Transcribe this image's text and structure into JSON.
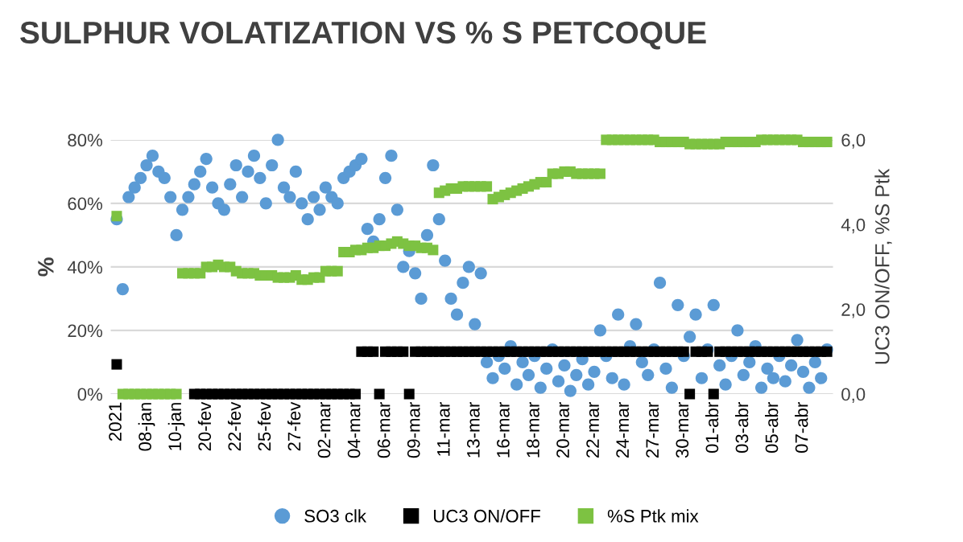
{
  "chart_data": {
    "type": "scatter",
    "title": "SULPHUR VOLATIZATION VS % S PETCOQUE",
    "ylabel": "%",
    "y2label": "UC3 ON/OFF, %S Ptk",
    "categories": [
      "2021",
      null,
      null,
      null,
      null,
      "08-jan",
      null,
      null,
      null,
      null,
      "10-jan",
      null,
      null,
      null,
      null,
      "20-fev",
      null,
      null,
      null,
      null,
      "22-fev",
      null,
      null,
      null,
      null,
      "25-fev",
      null,
      null,
      null,
      null,
      "27-fev",
      null,
      null,
      null,
      null,
      "02-mar",
      null,
      null,
      null,
      null,
      "04-mar",
      null,
      null,
      null,
      null,
      "06-mar",
      null,
      null,
      null,
      null,
      "09-mar",
      null,
      null,
      null,
      null,
      "11-mar",
      null,
      null,
      null,
      null,
      "13-mar",
      null,
      null,
      null,
      null,
      "16-mar",
      null,
      null,
      null,
      null,
      "18-mar",
      null,
      null,
      null,
      null,
      "20-mar",
      null,
      null,
      null,
      null,
      "22-mar",
      null,
      null,
      null,
      null,
      "24-mar",
      null,
      null,
      null,
      null,
      "27-mar",
      null,
      null,
      null,
      null,
      "30-mar",
      null,
      null,
      null,
      null,
      "01-abr",
      null,
      null,
      null,
      null,
      "03-abr",
      null,
      null,
      null,
      null,
      "05-abr",
      null,
      null,
      null,
      null,
      "07-abr",
      null,
      null,
      null,
      null
    ],
    "series": [
      {
        "name": "SO3 clk",
        "color": "#5b9bd5",
        "marker": "circle",
        "values": [
          55,
          33,
          62,
          65,
          68,
          72,
          75,
          70,
          68,
          62,
          50,
          58,
          62,
          66,
          70,
          74,
          65,
          60,
          58,
          66,
          72,
          62,
          70,
          75,
          68,
          60,
          72,
          80,
          65,
          62,
          70,
          60,
          55,
          62,
          58,
          65,
          62,
          60,
          68,
          70,
          72,
          74,
          52,
          48,
          55,
          68,
          75,
          58,
          40,
          45,
          38,
          30,
          50,
          72,
          55,
          42,
          30,
          25,
          35,
          40,
          22,
          38,
          10,
          5,
          12,
          8,
          15,
          3,
          10,
          6,
          12,
          2,
          8,
          14,
          4,
          9,
          1,
          6,
          11,
          3,
          7,
          20,
          12,
          5,
          25,
          3,
          15,
          22,
          10,
          6,
          14,
          35,
          8,
          2,
          28,
          12,
          18,
          25,
          5,
          14,
          28,
          9,
          3,
          12,
          20,
          6,
          10,
          15,
          2,
          8,
          5,
          12,
          4,
          9,
          17,
          7,
          2,
          10,
          5,
          14
        ]
      },
      {
        "name": "UC3 ON/OFF",
        "color": "#000000",
        "marker": "square",
        "axis": "y2",
        "values": [
          0.7,
          null,
          null,
          null,
          null,
          null,
          null,
          null,
          null,
          null,
          null,
          null,
          null,
          0,
          0,
          0,
          0,
          0,
          0,
          0,
          0,
          0,
          0,
          0,
          0,
          0,
          0,
          0,
          0,
          0,
          0,
          0,
          0,
          0,
          0,
          0,
          0,
          0,
          0,
          0,
          0,
          1,
          1,
          1,
          0,
          1,
          1,
          1,
          1,
          0,
          1,
          1,
          1,
          1,
          1,
          1,
          1,
          1,
          1,
          1,
          1,
          1,
          1,
          1,
          1,
          1,
          1,
          1,
          1,
          1,
          1,
          1,
          1,
          1,
          1,
          1,
          1,
          1,
          1,
          1,
          1,
          1,
          1,
          1,
          1,
          1,
          1,
          1,
          1,
          1,
          1,
          1,
          1,
          1,
          1,
          1,
          0,
          1,
          1,
          1,
          0,
          1,
          1,
          1,
          1,
          1,
          1,
          1,
          1,
          1,
          1,
          1,
          1,
          1,
          1,
          1,
          1,
          1,
          1,
          1
        ]
      },
      {
        "name": "%S Ptk mix",
        "color": "#7dc242",
        "marker": "square",
        "axis": "y2",
        "values": [
          4.2,
          0,
          0,
          0,
          0,
          0,
          0,
          0,
          0,
          0,
          0,
          2.85,
          2.85,
          2.85,
          2.85,
          3.0,
          3.0,
          3.05,
          3.0,
          3.0,
          2.9,
          2.85,
          2.85,
          2.85,
          2.8,
          2.8,
          2.8,
          2.75,
          2.75,
          2.75,
          2.8,
          2.7,
          2.7,
          2.75,
          2.75,
          2.9,
          2.9,
          2.9,
          3.35,
          3.35,
          3.4,
          3.4,
          3.45,
          3.45,
          3.5,
          3.5,
          3.55,
          3.6,
          3.55,
          3.5,
          3.5,
          3.45,
          3.45,
          3.4,
          4.75,
          4.8,
          4.85,
          4.85,
          4.9,
          4.9,
          4.9,
          4.9,
          4.9,
          4.6,
          4.65,
          4.7,
          4.75,
          4.8,
          4.85,
          4.9,
          4.95,
          5.0,
          5.0,
          5.2,
          5.2,
          5.25,
          5.25,
          5.2,
          5.2,
          5.2,
          5.2,
          5.2,
          6.0,
          6.0,
          6.0,
          6.0,
          6.0,
          6.0,
          6.0,
          6.0,
          6.0,
          5.95,
          5.95,
          5.95,
          5.95,
          5.95,
          5.9,
          5.9,
          5.9,
          5.9,
          5.9,
          5.9,
          5.95,
          5.95,
          5.95,
          5.95,
          5.95,
          5.95,
          6.0,
          6.0,
          6.0,
          6.0,
          6.0,
          6.0,
          6.0,
          5.95,
          5.95,
          5.95,
          5.95,
          5.95
        ]
      }
    ],
    "ylim": [
      0,
      80
    ],
    "yticks": [
      {
        "value": 0,
        "label": "0%"
      },
      {
        "value": 20,
        "label": "20%"
      },
      {
        "value": 40,
        "label": "40%"
      },
      {
        "value": 60,
        "label": "60%"
      },
      {
        "value": 80,
        "label": "80%"
      }
    ],
    "y2lim": [
      0,
      6
    ],
    "y2ticks": [
      {
        "value": 0,
        "label": "0,0"
      },
      {
        "value": 2,
        "label": "2,0"
      },
      {
        "value": 4,
        "label": "4,0"
      },
      {
        "value": 6,
        "label": "6,0"
      }
    ],
    "grid": "y",
    "legend": "bottom"
  }
}
